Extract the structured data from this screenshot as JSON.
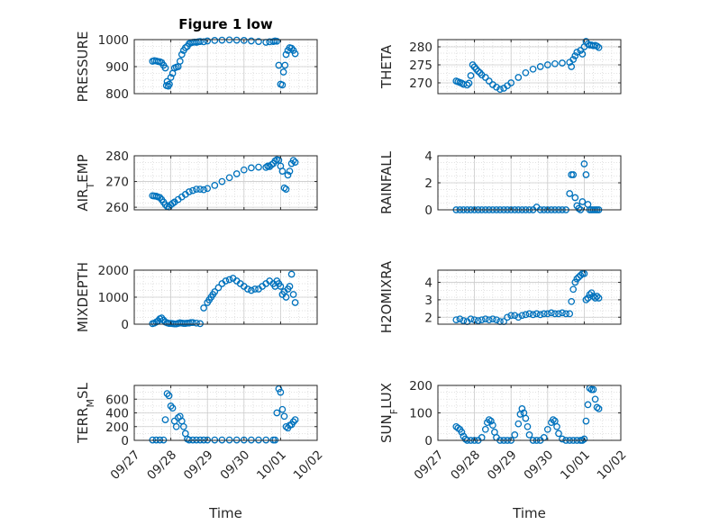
{
  "chart_data": [
    {
      "type": "scatter",
      "title": "Figure 1 low",
      "ylabel": "PRESSURE",
      "xlabel": "",
      "xlim": [
        0,
        5
      ],
      "ylim": [
        800,
        1000
      ],
      "yticks": [
        800,
        900,
        1000
      ],
      "xticks": [],
      "marker_color": "#0072BD",
      "grid": "minor",
      "x": [
        0.5,
        0.55,
        0.6,
        0.65,
        0.7,
        0.75,
        0.8,
        0.85,
        0.88,
        0.9,
        0.93,
        0.96,
        1.0,
        1.05,
        1.1,
        1.15,
        1.2,
        1.25,
        1.3,
        1.35,
        1.4,
        1.45,
        1.5,
        1.55,
        1.6,
        1.65,
        1.7,
        1.75,
        1.8,
        1.9,
        2.0,
        2.2,
        2.4,
        2.6,
        2.8,
        3.0,
        3.2,
        3.4,
        3.6,
        3.7,
        3.8,
        3.85,
        3.9,
        3.95,
        4.0,
        4.05,
        4.08,
        4.12,
        4.15,
        4.2,
        4.25,
        4.3,
        4.35,
        4.4
      ],
      "y": [
        920,
        922,
        921,
        919,
        918,
        915,
        905,
        895,
        830,
        845,
        828,
        835,
        860,
        875,
        895,
        898,
        900,
        920,
        945,
        960,
        970,
        975,
        985,
        988,
        990,
        991,
        990,
        992,
        993,
        992,
        995,
        997,
        998,
        999,
        998,
        997,
        995,
        993,
        990,
        992,
        993,
        995,
        994,
        905,
        835,
        832,
        880,
        905,
        945,
        960,
        970,
        968,
        960,
        948
      ]
    },
    {
      "type": "scatter",
      "title": "",
      "ylabel": "THETA",
      "xlabel": "",
      "xlim": [
        0,
        5
      ],
      "ylim": [
        267,
        282
      ],
      "yticks": [
        270,
        275,
        280
      ],
      "xticks": [],
      "marker_color": "#0072BD",
      "grid": "minor",
      "x": [
        0.5,
        0.55,
        0.6,
        0.65,
        0.7,
        0.8,
        0.85,
        0.9,
        0.95,
        1.0,
        1.05,
        1.1,
        1.15,
        1.2,
        1.3,
        1.4,
        1.5,
        1.6,
        1.7,
        1.8,
        1.9,
        2.0,
        2.2,
        2.4,
        2.6,
        2.8,
        3.0,
        3.2,
        3.4,
        3.6,
        3.65,
        3.7,
        3.75,
        3.8,
        3.9,
        3.95,
        4.0,
        4.05,
        4.1,
        4.15,
        4.2,
        4.25,
        4.3,
        4.35,
        4.4
      ],
      "y": [
        270.5,
        270.3,
        270.1,
        269.9,
        269.6,
        269.4,
        269.9,
        272,
        275,
        274.4,
        273.8,
        273.2,
        272.8,
        272.2,
        271.5,
        270.5,
        269.5,
        268.8,
        268.2,
        268.5,
        269.2,
        270,
        271.5,
        272.8,
        273.8,
        274.5,
        275,
        275.3,
        275.5,
        275.7,
        274.5,
        276.5,
        277.5,
        278.5,
        279,
        278,
        280,
        281.5,
        280.8,
        280.5,
        280.5,
        280.3,
        280.4,
        280.2,
        279.8
      ]
    },
    {
      "type": "scatter",
      "title": "",
      "ylabel": "AIR_TEMP",
      "ylabel_parts": [
        "AIR",
        "T",
        "EMP"
      ],
      "xlabel": "",
      "xlim": [
        0,
        5
      ],
      "ylim": [
        259,
        280
      ],
      "yticks": [
        260,
        270,
        280
      ],
      "xticks": [],
      "marker_color": "#0072BD",
      "grid": "minor",
      "x": [
        0.5,
        0.55,
        0.6,
        0.65,
        0.7,
        0.75,
        0.8,
        0.85,
        0.9,
        0.95,
        1.0,
        1.05,
        1.1,
        1.2,
        1.3,
        1.4,
        1.5,
        1.6,
        1.7,
        1.8,
        1.9,
        2.0,
        2.2,
        2.4,
        2.6,
        2.8,
        3.0,
        3.2,
        3.4,
        3.6,
        3.65,
        3.7,
        3.75,
        3.8,
        3.85,
        3.9,
        3.95,
        4.0,
        4.05,
        4.1,
        4.15,
        4.2,
        4.25,
        4.3,
        4.35,
        4.4
      ],
      "y": [
        264.5,
        264.4,
        264.3,
        264,
        263.8,
        263,
        262,
        261,
        260.3,
        260.1,
        261,
        261.5,
        262,
        263,
        264,
        265,
        266,
        266.5,
        267,
        267,
        266.8,
        267.3,
        268.5,
        270,
        271.5,
        273,
        274.5,
        275.3,
        275.6,
        275.5,
        276,
        275.8,
        276.5,
        277,
        278,
        278.5,
        278.3,
        276,
        274,
        267.5,
        267,
        272.5,
        274,
        277,
        278.2,
        277.5
      ]
    },
    {
      "type": "scatter",
      "title": "",
      "ylabel": "RAINFALL",
      "xlabel": "",
      "xlim": [
        0,
        5
      ],
      "ylim": [
        0,
        4
      ],
      "yticks": [
        0,
        2,
        4
      ],
      "xticks": [],
      "marker_color": "#0072BD",
      "grid": "minor",
      "x": [
        0.5,
        0.6,
        0.7,
        0.8,
        0.9,
        1.0,
        1.1,
        1.2,
        1.3,
        1.4,
        1.5,
        1.6,
        1.7,
        1.8,
        1.9,
        2.0,
        2.1,
        2.2,
        2.3,
        2.4,
        2.5,
        2.6,
        2.7,
        2.8,
        2.9,
        3.0,
        3.1,
        3.2,
        3.3,
        3.4,
        3.5,
        3.6,
        3.65,
        3.7,
        3.75,
        3.8,
        3.85,
        3.9,
        3.95,
        4.0,
        4.05,
        4.1,
        4.15,
        4.2,
        4.25,
        4.3,
        4.35,
        4.4
      ],
      "y": [
        0,
        0,
        0,
        0,
        0,
        0,
        0,
        0,
        0,
        0,
        0,
        0,
        0,
        0,
        0,
        0,
        0,
        0,
        0,
        0,
        0,
        0,
        0.2,
        0,
        0,
        0,
        0,
        0,
        0,
        0,
        0,
        1.2,
        2.6,
        2.6,
        0.9,
        0.3,
        0.1,
        0,
        0.6,
        3.4,
        2.6,
        0.4,
        0,
        0,
        0,
        0,
        0,
        0
      ]
    },
    {
      "type": "scatter",
      "title": "",
      "ylabel": "MIXDEPTH",
      "xlabel": "",
      "xlim": [
        0,
        5
      ],
      "ylim": [
        0,
        2000
      ],
      "yticks": [
        0,
        1000,
        2000
      ],
      "xticks": [],
      "marker_color": "#0072BD",
      "grid": "minor",
      "x": [
        0.5,
        0.55,
        0.6,
        0.65,
        0.7,
        0.75,
        0.8,
        0.85,
        0.9,
        0.95,
        1.0,
        1.05,
        1.1,
        1.15,
        1.2,
        1.25,
        1.3,
        1.35,
        1.4,
        1.45,
        1.5,
        1.55,
        1.6,
        1.7,
        1.8,
        1.9,
        2.0,
        2.05,
        2.1,
        2.15,
        2.2,
        2.3,
        2.4,
        2.5,
        2.6,
        2.7,
        2.8,
        2.9,
        3.0,
        3.1,
        3.2,
        3.3,
        3.4,
        3.5,
        3.6,
        3.7,
        3.8,
        3.85,
        3.9,
        3.95,
        4.0,
        4.05,
        4.1,
        4.15,
        4.2,
        4.25,
        4.3,
        4.35,
        4.4
      ],
      "y": [
        20,
        40,
        80,
        120,
        200,
        230,
        150,
        80,
        50,
        30,
        30,
        20,
        10,
        10,
        30,
        50,
        40,
        30,
        30,
        40,
        40,
        60,
        60,
        40,
        20,
        600,
        800,
        900,
        1000,
        1100,
        1200,
        1350,
        1500,
        1600,
        1650,
        1700,
        1600,
        1500,
        1400,
        1300,
        1250,
        1300,
        1300,
        1400,
        1500,
        1600,
        1500,
        1400,
        1600,
        1500,
        1400,
        1100,
        1200,
        1000,
        1300,
        1400,
        1850,
        1100,
        800
      ]
    },
    {
      "type": "scatter",
      "title": "",
      "ylabel": "H2OMIXRA",
      "xlabel": "",
      "xlim": [
        0,
        5
      ],
      "ylim": [
        1.6,
        4.7
      ],
      "yticks": [
        2,
        3,
        4
      ],
      "xticks": [],
      "marker_color": "#0072BD",
      "grid": "minor",
      "x": [
        0.5,
        0.6,
        0.7,
        0.8,
        0.9,
        1.0,
        1.1,
        1.2,
        1.3,
        1.4,
        1.5,
        1.6,
        1.7,
        1.8,
        1.9,
        2.0,
        2.1,
        2.2,
        2.3,
        2.4,
        2.5,
        2.6,
        2.7,
        2.8,
        2.9,
        3.0,
        3.1,
        3.2,
        3.3,
        3.4,
        3.5,
        3.6,
        3.65,
        3.7,
        3.75,
        3.8,
        3.85,
        3.9,
        3.95,
        4.0,
        4.05,
        4.1,
        4.15,
        4.2,
        4.25,
        4.3,
        4.35,
        4.4
      ],
      "y": [
        1.85,
        1.9,
        1.8,
        1.75,
        1.9,
        1.85,
        1.8,
        1.85,
        1.9,
        1.85,
        1.9,
        1.85,
        1.75,
        1.75,
        2.0,
        2.1,
        2.1,
        2.0,
        2.1,
        2.15,
        2.2,
        2.15,
        2.2,
        2.15,
        2.2,
        2.2,
        2.25,
        2.2,
        2.2,
        2.25,
        2.2,
        2.2,
        2.9,
        3.6,
        4.0,
        4.2,
        4.3,
        4.4,
        4.5,
        4.5,
        3.0,
        3.1,
        3.3,
        3.4,
        3.2,
        3.1,
        3.2,
        3.1
      ]
    },
    {
      "type": "scatter",
      "title": "",
      "ylabel": "TERR_MSL",
      "ylabel_parts": [
        "TERR",
        "M",
        "SL"
      ],
      "xlabel": "Time",
      "xlim": [
        0,
        5
      ],
      "ylim": [
        0,
        800
      ],
      "yticks": [
        0,
        200,
        400,
        600
      ],
      "xticks": [
        "09/27",
        "09/28",
        "09/29",
        "09/30",
        "10/01",
        "10/02"
      ],
      "marker_color": "#0072BD",
      "grid": "minor",
      "x": [
        0.5,
        0.6,
        0.7,
        0.8,
        0.85,
        0.9,
        0.95,
        1.0,
        1.05,
        1.1,
        1.15,
        1.2,
        1.25,
        1.3,
        1.35,
        1.4,
        1.45,
        1.5,
        1.6,
        1.7,
        1.8,
        1.9,
        2.0,
        2.2,
        2.4,
        2.6,
        2.8,
        3.0,
        3.2,
        3.4,
        3.6,
        3.8,
        3.85,
        3.9,
        3.95,
        4.0,
        4.05,
        4.1,
        4.15,
        4.2,
        4.25,
        4.3,
        4.35,
        4.4
      ],
      "y": [
        5,
        5,
        5,
        5,
        300,
        680,
        650,
        500,
        470,
        280,
        200,
        330,
        350,
        280,
        200,
        100,
        20,
        5,
        5,
        5,
        5,
        5,
        5,
        5,
        5,
        5,
        5,
        5,
        5,
        5,
        5,
        5,
        5,
        400,
        750,
        700,
        450,
        350,
        200,
        180,
        220,
        230,
        270,
        300
      ]
    },
    {
      "type": "scatter",
      "title": "",
      "ylabel": "SUN_FLUX",
      "ylabel_parts": [
        "SUN",
        "F",
        "LUX"
      ],
      "xlabel": "Time",
      "xlim": [
        0,
        5
      ],
      "ylim": [
        0,
        200
      ],
      "yticks": [
        0,
        100,
        200
      ],
      "xticks": [
        "09/27",
        "09/28",
        "09/29",
        "09/30",
        "10/01",
        "10/02"
      ],
      "marker_color": "#0072BD",
      "grid": "minor",
      "x": [
        0.5,
        0.55,
        0.6,
        0.65,
        0.7,
        0.75,
        0.8,
        0.9,
        1.0,
        1.1,
        1.2,
        1.3,
        1.35,
        1.4,
        1.45,
        1.5,
        1.55,
        1.6,
        1.7,
        1.8,
        1.9,
        2.0,
        2.1,
        2.2,
        2.25,
        2.3,
        2.35,
        2.4,
        2.45,
        2.5,
        2.6,
        2.7,
        2.8,
        2.9,
        3.0,
        3.1,
        3.15,
        3.2,
        3.25,
        3.3,
        3.4,
        3.5,
        3.6,
        3.7,
        3.8,
        3.9,
        3.95,
        4.0,
        4.05,
        4.1,
        4.15,
        4.2,
        4.25,
        4.3,
        4.35,
        4.4
      ],
      "y": [
        50,
        45,
        40,
        30,
        15,
        5,
        0,
        0,
        0,
        0,
        10,
        40,
        65,
        75,
        70,
        55,
        30,
        10,
        0,
        0,
        0,
        0,
        20,
        60,
        95,
        115,
        100,
        80,
        50,
        20,
        0,
        0,
        0,
        10,
        40,
        65,
        75,
        70,
        50,
        25,
        5,
        0,
        0,
        0,
        0,
        0,
        0,
        5,
        70,
        130,
        190,
        185,
        185,
        150,
        120,
        115
      ]
    }
  ]
}
